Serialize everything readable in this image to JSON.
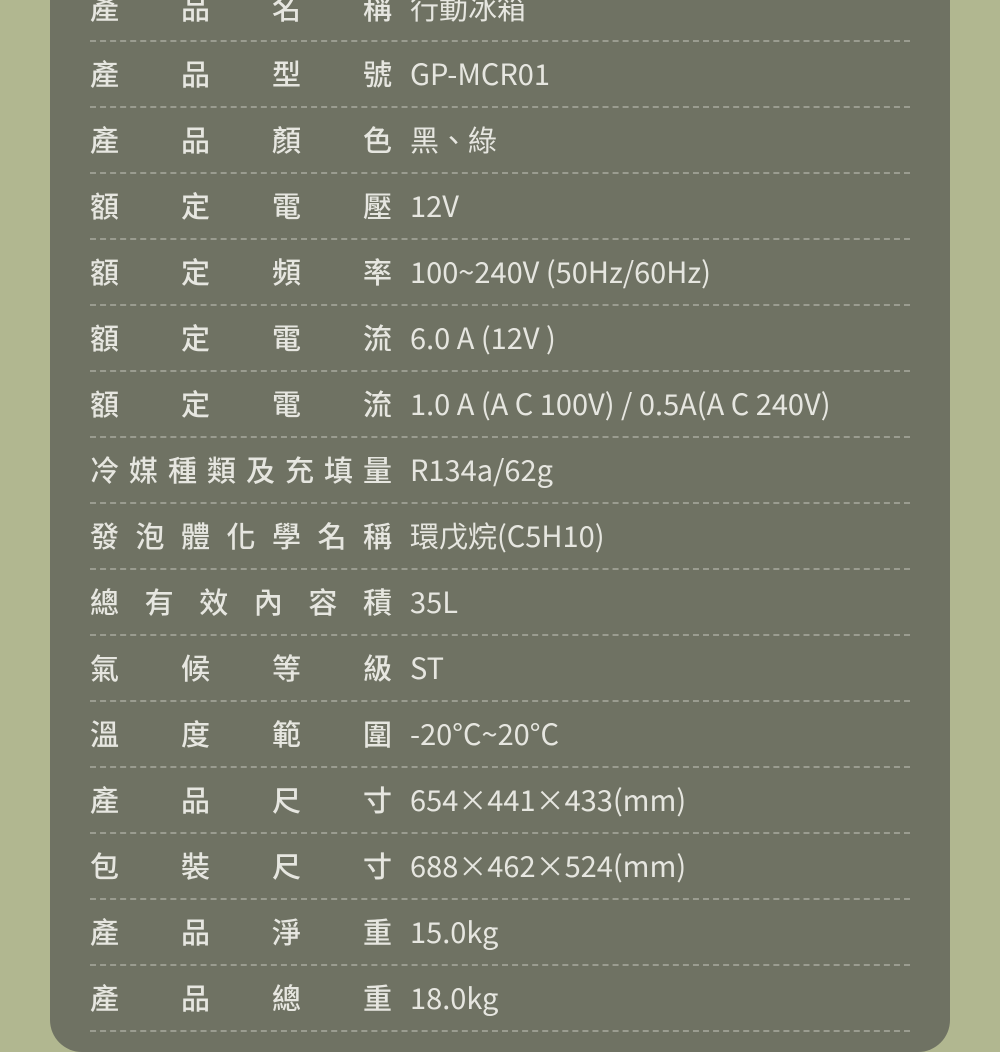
{
  "card": {
    "background_color": "#6f7263",
    "border_radius": 32,
    "text_color": "#e6e6e0",
    "divider_color": "#9a9c90"
  },
  "page": {
    "background_color": "#b1b790"
  },
  "rows": [
    {
      "label": "產品名稱",
      "value": "行動冰箱"
    },
    {
      "label": "產品型號",
      "value": "GP-MCR01"
    },
    {
      "label": "產品顏色",
      "value": "黑、綠"
    },
    {
      "label": "額定電壓",
      "value": "12V"
    },
    {
      "label": "額定頻率",
      "value": "100~240V (50Hz/60Hz)"
    },
    {
      "label": "額定電流",
      "value": "6.0 A (12V )"
    },
    {
      "label": "額定電流",
      "value": "1.0 A (A C 100V) / 0.5A(A C 240V)"
    },
    {
      "label": "冷媒種類及充填量",
      "value": "R134a/62g"
    },
    {
      "label": "發泡體化學名稱",
      "value": "環戊烷(C5H10)"
    },
    {
      "label": "總有效內容積",
      "value": "35L"
    },
    {
      "label": "氣候等級",
      "value": "ST"
    },
    {
      "label": "溫度範圍",
      "value": "-20°C~20°C"
    },
    {
      "label": "產品尺寸",
      "value": "654×441×433(mm)"
    },
    {
      "label": "包裝尺寸",
      "value": "688×462×524(mm)"
    },
    {
      "label": "產品淨重",
      "value": "15.0kg"
    },
    {
      "label": "產品總重",
      "value": "18.0kg"
    }
  ]
}
